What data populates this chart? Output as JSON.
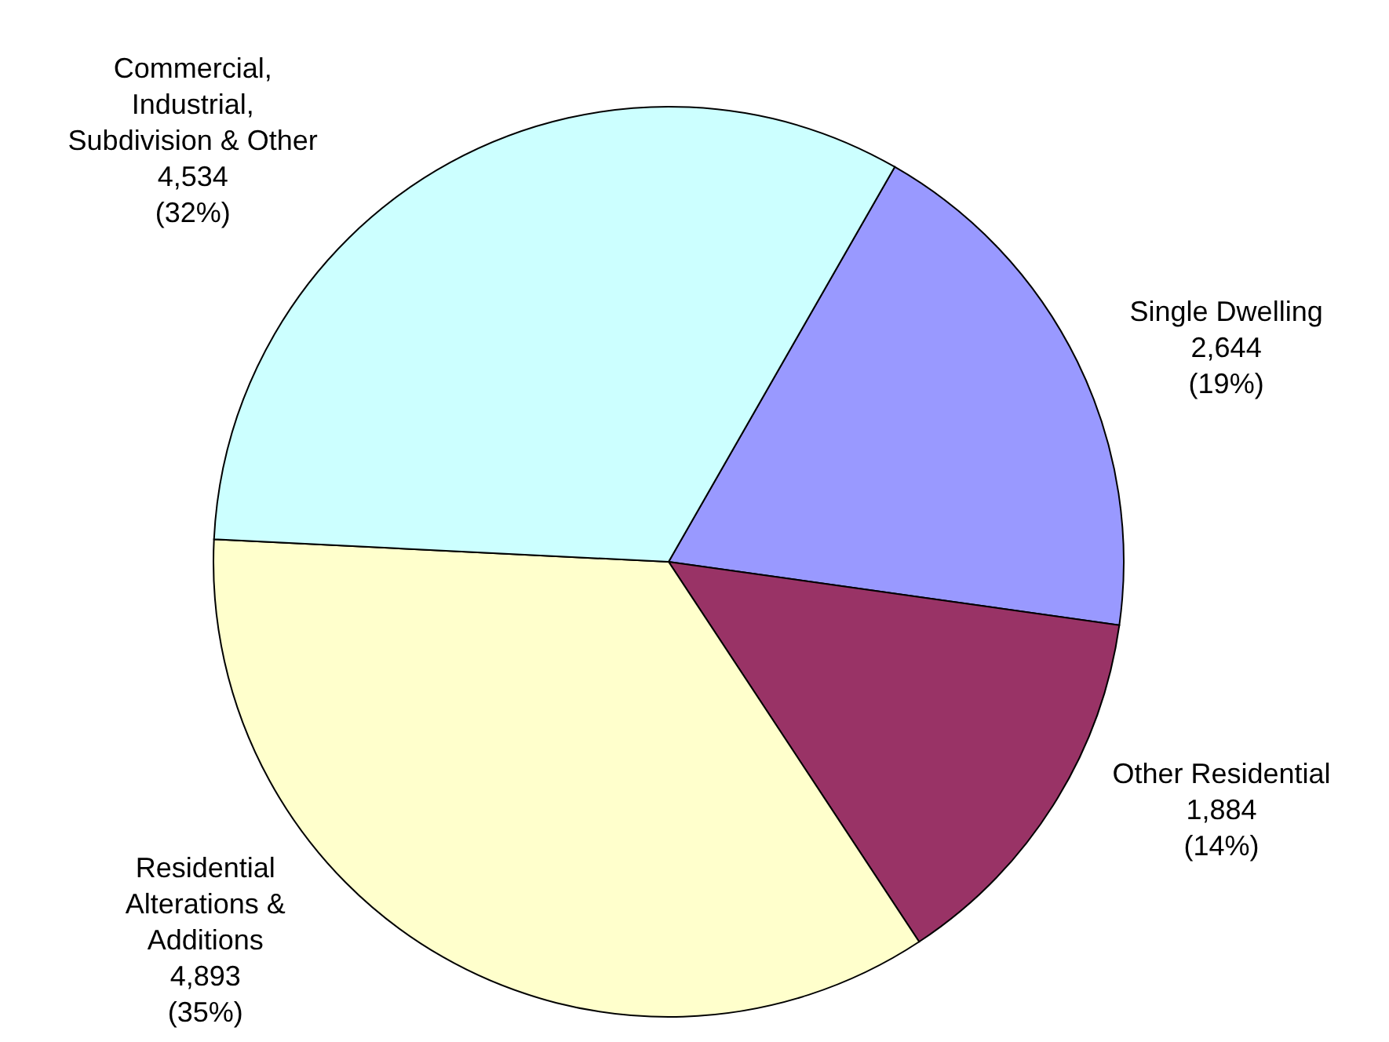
{
  "chart_data": {
    "type": "pie",
    "categories": [
      "Single Dwelling",
      "Other Residential",
      "Residential Alterations & Additions",
      "Commercial, Industrial, Subdivision & Other"
    ],
    "values": [
      2644,
      1884,
      4893,
      4534
    ],
    "colors": [
      "#9999ff",
      "#993366",
      "#ffffcc",
      "#ccffff"
    ],
    "value_labels": [
      "2,644 (19%)",
      "1,884 (14%)",
      "4,893 (35%)",
      "4,534 (32%)"
    ]
  }
}
